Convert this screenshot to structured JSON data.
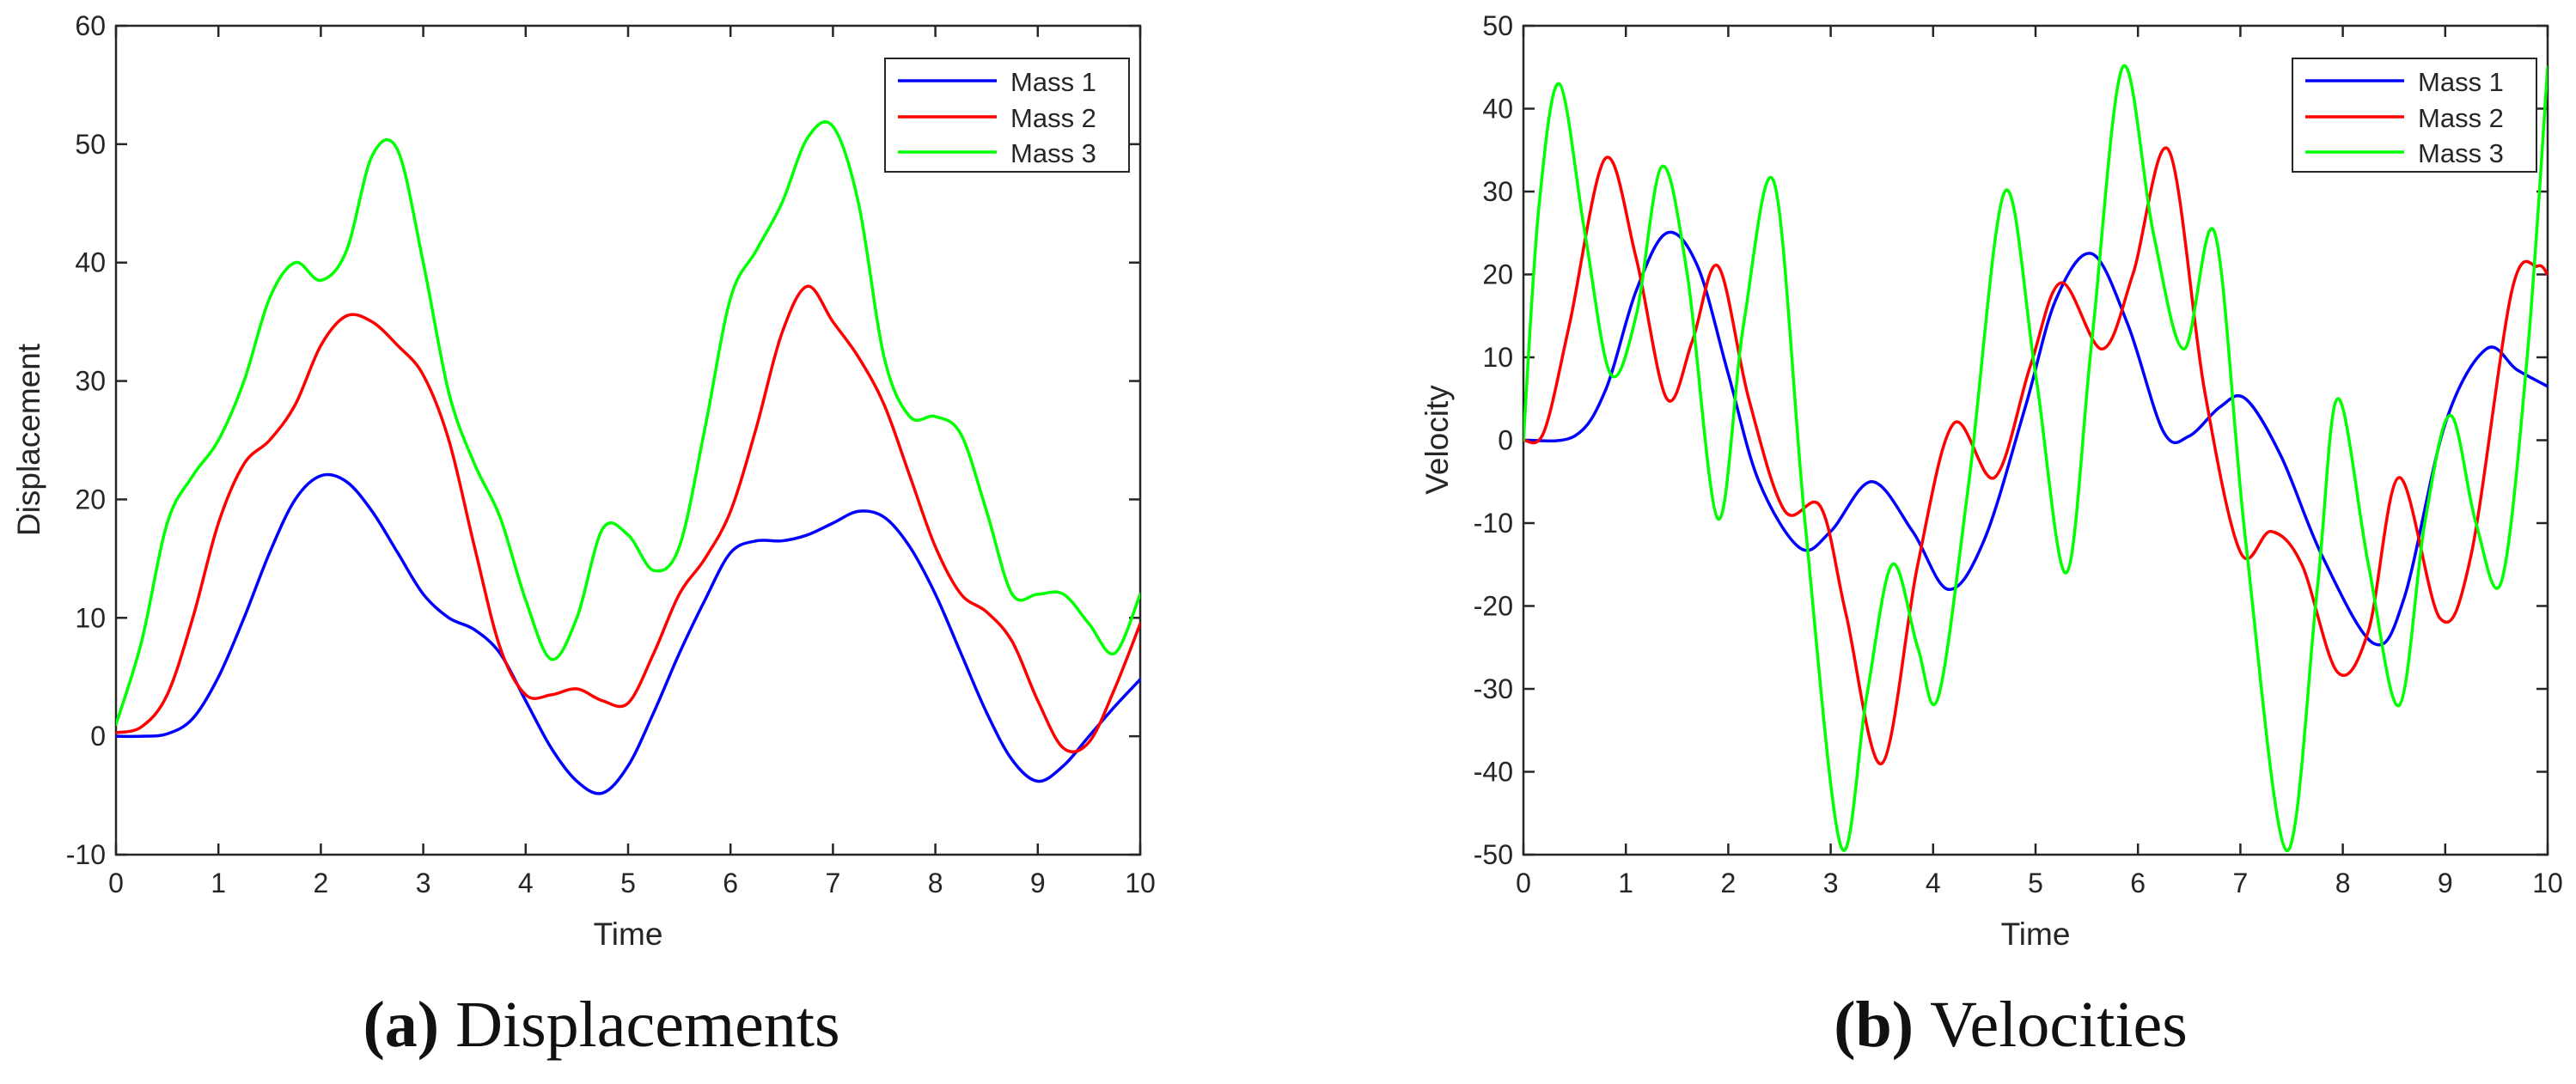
{
  "chart_data": [
    {
      "type": "line",
      "caption_label": "a",
      "caption_text": "Displacements",
      "title": "",
      "xlabel": "Time",
      "ylabel": "Displacement",
      "xlim": [
        0,
        10
      ],
      "ylim": [
        -10,
        60
      ],
      "xticks": [
        0,
        1,
        2,
        3,
        4,
        5,
        6,
        7,
        8,
        9,
        10
      ],
      "yticks": [
        -10,
        0,
        10,
        20,
        30,
        40,
        50,
        60
      ],
      "grid": false,
      "legend_position": "top-right",
      "series": [
        {
          "name": "Mass 1",
          "color": "#0000ff",
          "x": [
            0,
            0.25,
            0.5,
            0.75,
            1,
            1.25,
            1.5,
            1.75,
            2,
            2.25,
            2.5,
            2.75,
            3,
            3.25,
            3.5,
            3.75,
            4,
            4.25,
            4.5,
            4.75,
            5,
            5.25,
            5.5,
            5.75,
            6,
            6.25,
            6.5,
            6.75,
            7,
            7.25,
            7.5,
            7.75,
            8,
            8.25,
            8.5,
            8.75,
            9,
            9.25,
            9.5,
            9.75,
            10
          ],
          "y": [
            0,
            0,
            0.2,
            1.5,
            5,
            10,
            15.5,
            20,
            22,
            21.5,
            19,
            15.5,
            12,
            10,
            9,
            7,
            3,
            -1,
            -3.8,
            -4.8,
            -2.5,
            2,
            7,
            11.5,
            15.5,
            16.5,
            16.5,
            17,
            18,
            19,
            18.5,
            16,
            12,
            7,
            2,
            -2,
            -3.8,
            -2.5,
            0,
            2.5,
            4.8
          ]
        },
        {
          "name": "Mass 2",
          "color": "#ff0000",
          "x": [
            0,
            0.25,
            0.5,
            0.75,
            1,
            1.25,
            1.5,
            1.75,
            2,
            2.25,
            2.5,
            2.75,
            3,
            3.25,
            3.5,
            3.75,
            4,
            4.25,
            4.5,
            4.75,
            5,
            5.25,
            5.5,
            5.75,
            6,
            6.25,
            6.5,
            6.75,
            7,
            7.25,
            7.5,
            7.75,
            8,
            8.25,
            8.5,
            8.75,
            9,
            9.25,
            9.5,
            9.75,
            10
          ],
          "y": [
            0.3,
            0.8,
            3.5,
            10,
            18,
            23,
            25,
            28,
            33,
            35.5,
            35,
            33,
            30.5,
            25,
            16,
            7.5,
            3.5,
            3.5,
            4,
            3,
            2.8,
            7,
            12,
            15,
            19,
            26,
            34,
            38,
            35,
            32,
            28,
            22,
            16,
            12,
            10.5,
            8,
            3,
            -1,
            -0.5,
            4,
            9.5
          ]
        },
        {
          "name": "Mass 3",
          "color": "#00ff00",
          "x": [
            0,
            0.25,
            0.5,
            0.75,
            1,
            1.25,
            1.5,
            1.75,
            2,
            2.25,
            2.5,
            2.75,
            3,
            3.25,
            3.5,
            3.75,
            4,
            4.25,
            4.5,
            4.75,
            5,
            5.25,
            5.5,
            5.75,
            6,
            6.25,
            6.5,
            6.75,
            7,
            7.25,
            7.5,
            7.75,
            8,
            8.25,
            8.5,
            8.75,
            9,
            9.25,
            9.5,
            9.75,
            10
          ],
          "y": [
            1,
            8,
            18,
            22,
            25,
            30,
            37,
            40,
            38.5,
            41,
            49,
            49.5,
            40,
            29,
            23,
            18.5,
            11.5,
            6.5,
            10,
            17.5,
            17,
            14,
            16,
            26,
            37,
            41,
            45,
            50.5,
            51.5,
            45,
            32,
            27,
            27,
            25.5,
            19,
            12,
            12,
            12,
            9.5,
            7,
            12
          ]
        }
      ]
    },
    {
      "type": "line",
      "caption_label": "b",
      "caption_text": "Velocities",
      "title": "",
      "xlabel": "Time",
      "ylabel": "Velocity",
      "xlim": [
        0,
        10
      ],
      "ylim": [
        -50,
        50
      ],
      "xticks": [
        0,
        1,
        2,
        3,
        4,
        5,
        6,
        7,
        8,
        9,
        10
      ],
      "yticks": [
        -50,
        -40,
        -30,
        -20,
        -10,
        0,
        10,
        20,
        30,
        40,
        50
      ],
      "grid": false,
      "legend_position": "top-right",
      "series": [
        {
          "name": "Mass 1",
          "color": "#0000ff",
          "x": [
            0,
            0.5,
            0.8,
            1.1,
            1.4,
            1.7,
            2,
            2.3,
            2.7,
            3,
            3.4,
            3.8,
            4.15,
            4.5,
            4.9,
            5.2,
            5.55,
            5.9,
            6.25,
            6.5,
            6.8,
            7.05,
            7.4,
            7.8,
            8.3,
            8.6,
            9,
            9.4,
            9.7,
            10
          ],
          "y": [
            0,
            0.5,
            6,
            18,
            25,
            21,
            8,
            -5,
            -13,
            -11,
            -5,
            -11,
            -18,
            -12,
            4,
            17,
            22.5,
            14,
            1,
            0.5,
            4,
            5,
            -2,
            -14,
            -24.5,
            -19,
            2,
            11,
            8.5,
            6.5
          ]
        },
        {
          "name": "Mass 2",
          "color": "#ff0000",
          "x": [
            0,
            0.2,
            0.45,
            0.8,
            1.1,
            1.4,
            1.65,
            1.9,
            2.2,
            2.55,
            2.9,
            3.15,
            3.5,
            3.85,
            4.2,
            4.6,
            4.95,
            5.25,
            5.65,
            5.95,
            6.3,
            6.65,
            7,
            7.3,
            7.6,
            7.95,
            8.25,
            8.55,
            8.95,
            9.25,
            9.65,
            9.9,
            10
          ],
          "y": [
            0,
            1,
            14,
            34,
            22,
            5,
            12,
            21,
            5,
            -8.5,
            -8,
            -21,
            -39,
            -15,
            2,
            -4.5,
            9,
            19,
            11,
            20,
            35,
            6,
            -13.5,
            -11,
            -15,
            -28,
            -23,
            -4.5,
            -21.5,
            -14,
            18,
            21,
            20
          ]
        },
        {
          "name": "Mass 3",
          "color": "#00ff00",
          "x": [
            0,
            0.15,
            0.35,
            0.6,
            0.85,
            1.1,
            1.35,
            1.6,
            1.9,
            2.15,
            2.45,
            2.75,
            3.1,
            3.35,
            3.6,
            3.85,
            4.05,
            4.35,
            4.7,
            5,
            5.3,
            5.55,
            5.85,
            6.15,
            6.45,
            6.75,
            7.05,
            7.45,
            7.75,
            7.95,
            8.25,
            8.55,
            8.8,
            9.05,
            9.3,
            9.55,
            9.8,
            10
          ],
          "y": [
            0,
            28,
            43,
            25,
            8,
            15,
            33,
            20,
            -9.5,
            14,
            31,
            -10,
            -49,
            -31,
            -15,
            -25,
            -31,
            -5,
            30,
            8,
            -16,
            12,
            45,
            25,
            11,
            25,
            -12,
            -49.5,
            -18,
            5,
            -15,
            -32,
            -10,
            3,
            -10,
            -17,
            10,
            45
          ]
        }
      ]
    }
  ]
}
